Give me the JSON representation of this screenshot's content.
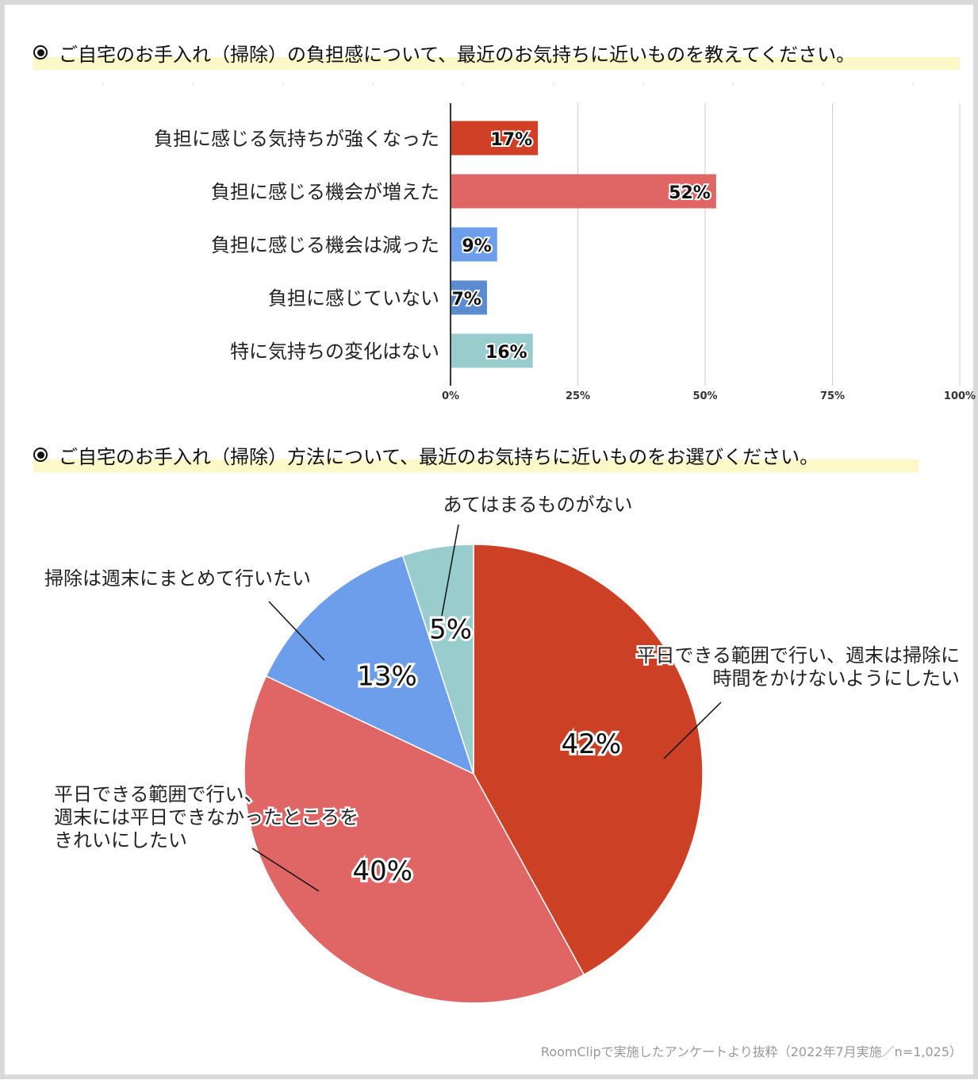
{
  "questions": [
    "ご自宅のお手入れ（掃除）の負担感について、最近のお気持ちに近いものを教えてください。",
    "ご自宅のお手入れ（掃除）方法について、最近のお気持ちに近いものをお選びください。"
  ],
  "chart_data": [
    {
      "type": "bar",
      "orientation": "horizontal",
      "categories": [
        "負担に感じる気持ちが強くなった",
        "負担に感じる機会が増えた",
        "負担に感じる機会は減った",
        "負担に感じていない",
        "特に気持ちの変化はない"
      ],
      "values": [
        17,
        52,
        9,
        7,
        16
      ],
      "data_labels": [
        "17%",
        "52%",
        "9%",
        "7%",
        "16%"
      ],
      "colors": [
        "#cf4027",
        "#e06666",
        "#6d9eeb",
        "#5b8ccf",
        "#99cccc"
      ],
      "xlim": [
        0,
        100
      ],
      "xticks": [
        "0%",
        "25%",
        "50%",
        "75%",
        "100%"
      ],
      "grid": true
    },
    {
      "type": "pie",
      "slices": [
        {
          "name": "平日できる範囲で行い、週末は掃除に時間をかけないようにしたい",
          "name_lines": [
            "平日できる範囲で行い、週末は掃除に",
            "時間をかけないようにしたい"
          ],
          "value": 42,
          "label": "42%",
          "color": "#cc4125"
        },
        {
          "name": "平日できる範囲で行い、週末には平日できなかったところをきれいにしたい",
          "name_lines": [
            "平日できる範囲で行い、",
            "週末には平日できなかったところを",
            "きれいにしたい"
          ],
          "value": 40,
          "label": "40%",
          "color": "#e06666"
        },
        {
          "name": "掃除は週末にまとめて行いたい",
          "name_lines": [
            "掃除は週末にまとめて行いたい"
          ],
          "value": 13,
          "label": "13%",
          "color": "#6d9eeb"
        },
        {
          "name": "あてはまるものがない",
          "name_lines": [
            "あてはまるものがない"
          ],
          "value": 5,
          "label": "5%",
          "color": "#99cccc"
        }
      ]
    }
  ],
  "footnote": "RoomClipで実施したアンケートより抜粋（2022年7月実施／n=1,025）"
}
